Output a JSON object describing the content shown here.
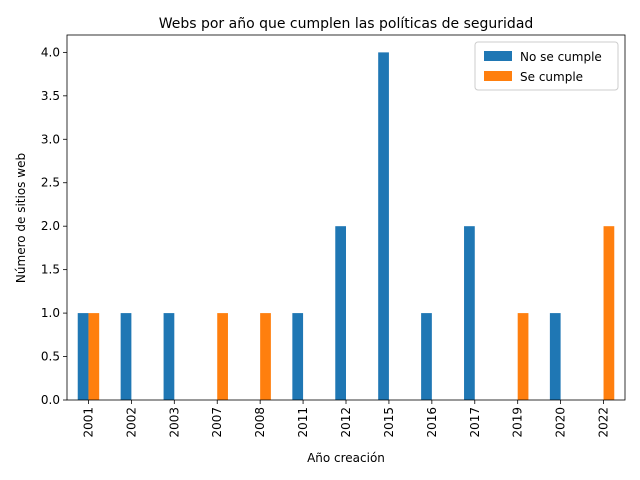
{
  "chart_data": {
    "type": "bar",
    "title": "Webs por año que cumplen las políticas de seguridad",
    "xlabel": "Año creación",
    "ylabel": "Número de sitios web",
    "categories": [
      "2001",
      "2002",
      "2003",
      "2007",
      "2008",
      "2011",
      "2012",
      "2015",
      "2016",
      "2017",
      "2019",
      "2020",
      "2022"
    ],
    "series": [
      {
        "name": "No se cumple",
        "color": "#1f77b4",
        "values": [
          1,
          1,
          1,
          0,
          0,
          1,
          2,
          4,
          1,
          2,
          0,
          1,
          0
        ]
      },
      {
        "name": "Se cumple",
        "color": "#ff7f0e",
        "values": [
          1,
          0,
          0,
          1,
          1,
          0,
          0,
          0,
          0,
          0,
          1,
          0,
          2
        ]
      }
    ],
    "ylim": [
      0,
      4.2
    ],
    "yticks": [
      "0.0",
      "0.5",
      "1.0",
      "1.5",
      "2.0",
      "2.5",
      "3.0",
      "3.5",
      "4.0"
    ],
    "grid": false,
    "legend_position": "top-right"
  }
}
